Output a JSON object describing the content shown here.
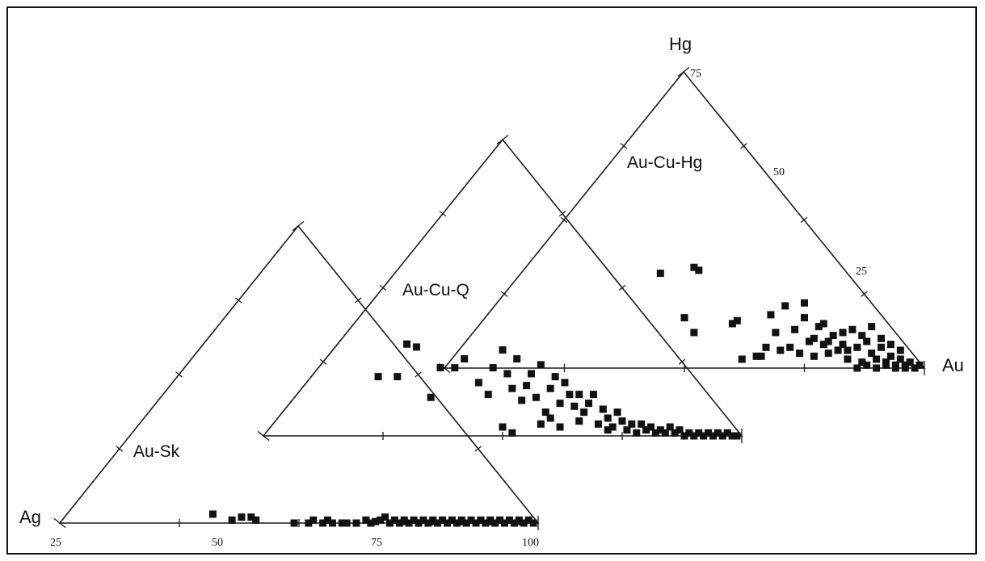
{
  "chart_data": {
    "type": "scatter",
    "variant": "stacked ternary diagrams (offset triangles)",
    "vertex_labels": {
      "left": "Ag",
      "top": "Hg",
      "right": "Au"
    },
    "tick_labels": {
      "base": [
        "25",
        "50",
        "75",
        "100"
      ],
      "right_edge": [
        "25",
        "50",
        "75"
      ]
    },
    "colors": {
      "line": "#1a1a1a",
      "marker": "#111111"
    },
    "grid": false,
    "legend": "none",
    "panels": [
      {
        "name": "Au-Sk",
        "points": [
          [
            0.32,
            0.03
          ],
          [
            0.36,
            0.01
          ],
          [
            0.38,
            0.02
          ],
          [
            0.4,
            0.02
          ],
          [
            0.41,
            0.01
          ],
          [
            0.49,
            0.0
          ],
          [
            0.52,
            0.0
          ],
          [
            0.53,
            0.01
          ],
          [
            0.55,
            0.0
          ],
          [
            0.56,
            0.01
          ],
          [
            0.57,
            0.0
          ],
          [
            0.59,
            0.0
          ],
          [
            0.6,
            0.0
          ],
          [
            0.62,
            0.0
          ],
          [
            0.64,
            0.01
          ],
          [
            0.65,
            0.0
          ],
          [
            0.67,
            0.01
          ],
          [
            0.68,
            0.02
          ],
          [
            0.69,
            0.0
          ],
          [
            0.7,
            0.01
          ],
          [
            0.71,
            0.0
          ],
          [
            0.72,
            0.01
          ],
          [
            0.73,
            0.0
          ],
          [
            0.74,
            0.01
          ],
          [
            0.75,
            0.0
          ],
          [
            0.76,
            0.01
          ],
          [
            0.77,
            0.0
          ],
          [
            0.78,
            0.01
          ],
          [
            0.79,
            0.0
          ],
          [
            0.8,
            0.01
          ],
          [
            0.81,
            0.0
          ],
          [
            0.82,
            0.01
          ],
          [
            0.83,
            0.0
          ],
          [
            0.84,
            0.01
          ],
          [
            0.85,
            0.0
          ],
          [
            0.86,
            0.01
          ],
          [
            0.87,
            0.0
          ],
          [
            0.88,
            0.01
          ],
          [
            0.89,
            0.0
          ],
          [
            0.9,
            0.01
          ],
          [
            0.91,
            0.0
          ],
          [
            0.92,
            0.01
          ],
          [
            0.93,
            0.0
          ],
          [
            0.94,
            0.01
          ],
          [
            0.95,
            0.0
          ],
          [
            0.96,
            0.01
          ],
          [
            0.97,
            0.0
          ],
          [
            0.98,
            0.01
          ],
          [
            0.99,
            0.0
          ],
          [
            0.66,
            0.005
          ],
          [
            0.72,
            0.005
          ],
          [
            0.78,
            0.005
          ],
          [
            0.84,
            0.005
          ],
          [
            0.9,
            0.005
          ],
          [
            0.96,
            0.005
          ]
        ]
      },
      {
        "name": "Au-Cu-Q",
        "points": [
          [
            0.24,
            0.2
          ],
          [
            0.28,
            0.2
          ],
          [
            0.3,
            0.31
          ],
          [
            0.32,
            0.3
          ],
          [
            0.35,
            0.13
          ],
          [
            0.37,
            0.23
          ],
          [
            0.4,
            0.23
          ],
          [
            0.42,
            0.26
          ],
          [
            0.45,
            0.18
          ],
          [
            0.47,
            0.14
          ],
          [
            0.48,
            0.23
          ],
          [
            0.5,
            0.29
          ],
          [
            0.51,
            0.21
          ],
          [
            0.52,
            0.16
          ],
          [
            0.53,
            0.26
          ],
          [
            0.55,
            0.17
          ],
          [
            0.56,
            0.21
          ],
          [
            0.57,
            0.13
          ],
          [
            0.58,
            0.24
          ],
          [
            0.59,
            0.08
          ],
          [
            0.6,
            0.16
          ],
          [
            0.61,
            0.2
          ],
          [
            0.62,
            0.11
          ],
          [
            0.63,
            0.18
          ],
          [
            0.64,
            0.14
          ],
          [
            0.65,
            0.1
          ],
          [
            0.66,
            0.14
          ],
          [
            0.67,
            0.08
          ],
          [
            0.68,
            0.11
          ],
          [
            0.69,
            0.14
          ],
          [
            0.7,
            0.04
          ],
          [
            0.71,
            0.09
          ],
          [
            0.72,
            0.06
          ],
          [
            0.73,
            0.03
          ],
          [
            0.74,
            0.08
          ],
          [
            0.75,
            0.05
          ],
          [
            0.76,
            0.02
          ],
          [
            0.77,
            0.04
          ],
          [
            0.78,
            0.01
          ],
          [
            0.79,
            0.04
          ],
          [
            0.8,
            0.02
          ],
          [
            0.81,
            0.03
          ],
          [
            0.82,
            0.01
          ],
          [
            0.83,
            0.02
          ],
          [
            0.84,
            0.01
          ],
          [
            0.85,
            0.03
          ],
          [
            0.86,
            0.01
          ],
          [
            0.87,
            0.02
          ],
          [
            0.88,
            0.0
          ],
          [
            0.89,
            0.01
          ],
          [
            0.9,
            0.0
          ],
          [
            0.91,
            0.01
          ],
          [
            0.92,
            0.0
          ],
          [
            0.93,
            0.01
          ],
          [
            0.94,
            0.0
          ],
          [
            0.95,
            0.01
          ],
          [
            0.96,
            0.0
          ],
          [
            0.97,
            0.01
          ],
          [
            0.98,
            0.0
          ],
          [
            0.99,
            0.0
          ],
          [
            0.5,
            0.03
          ],
          [
            0.52,
            0.01
          ],
          [
            0.58,
            0.04
          ],
          [
            0.62,
            0.03
          ],
          [
            0.66,
            0.05
          ],
          [
            0.72,
            0.02
          ],
          [
            0.54,
            0.12
          ],
          [
            0.6,
            0.06
          ]
        ]
      },
      {
        "name": "Au-Cu-Hg",
        "points": [
          [
            0.45,
            0.32
          ],
          [
            0.52,
            0.34
          ],
          [
            0.53,
            0.33
          ],
          [
            0.5,
            0.17
          ],
          [
            0.52,
            0.12
          ],
          [
            0.6,
            0.15
          ],
          [
            0.61,
            0.16
          ],
          [
            0.62,
            0.03
          ],
          [
            0.65,
            0.04
          ],
          [
            0.66,
            0.04
          ],
          [
            0.67,
            0.07
          ],
          [
            0.68,
            0.18
          ],
          [
            0.69,
            0.12
          ],
          [
            0.7,
            0.06
          ],
          [
            0.71,
            0.21
          ],
          [
            0.72,
            0.07
          ],
          [
            0.73,
            0.13
          ],
          [
            0.74,
            0.05
          ],
          [
            0.75,
            0.22
          ],
          [
            0.76,
            0.09
          ],
          [
            0.77,
            0.04
          ],
          [
            0.78,
            0.14
          ],
          [
            0.79,
            0.08
          ],
          [
            0.8,
            0.05
          ],
          [
            0.81,
            0.11
          ],
          [
            0.82,
            0.06
          ],
          [
            0.83,
            0.08
          ],
          [
            0.84,
            0.03
          ],
          [
            0.85,
            0.13
          ],
          [
            0.86,
            0.07
          ],
          [
            0.87,
            0.02
          ],
          [
            0.88,
            0.09
          ],
          [
            0.89,
            0.05
          ],
          [
            0.9,
            0.03
          ],
          [
            0.91,
            0.07
          ],
          [
            0.92,
            0.02
          ],
          [
            0.93,
            0.04
          ],
          [
            0.94,
            0.01
          ],
          [
            0.95,
            0.03
          ],
          [
            0.96,
            0.01
          ],
          [
            0.97,
            0.02
          ],
          [
            0.98,
            0.0
          ],
          [
            0.99,
            0.01
          ],
          [
            0.86,
            0.0
          ],
          [
            0.88,
            0.01
          ],
          [
            0.9,
            0.0
          ],
          [
            0.92,
            0.01
          ],
          [
            0.94,
            0.0
          ],
          [
            0.96,
            0.0
          ],
          [
            0.75,
            0.17
          ],
          [
            0.79,
            0.15
          ],
          [
            0.83,
            0.12
          ],
          [
            0.87,
            0.11
          ],
          [
            0.89,
            0.14
          ],
          [
            0.91,
            0.1
          ],
          [
            0.93,
            0.08
          ],
          [
            0.95,
            0.06
          ],
          [
            0.84,
            0.06
          ],
          [
            0.8,
            0.09
          ],
          [
            0.77,
            0.1
          ]
        ]
      }
    ]
  }
}
